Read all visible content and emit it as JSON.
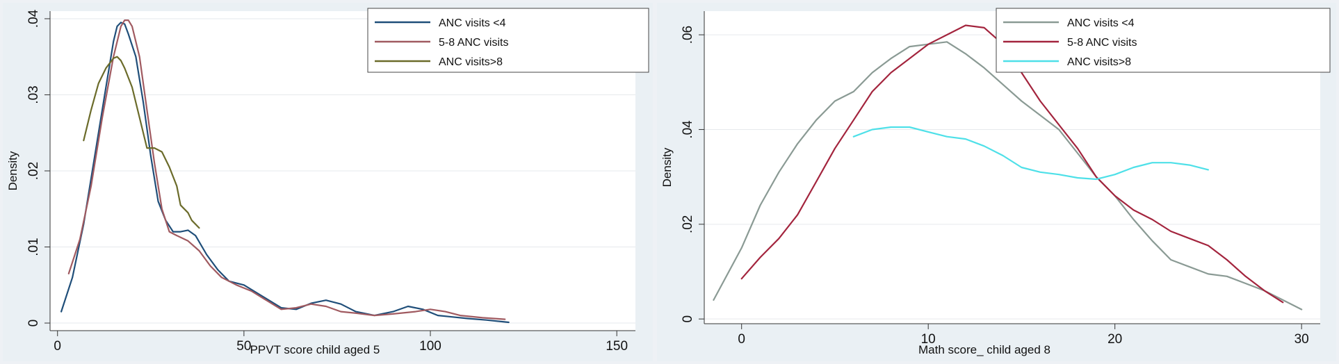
{
  "chart_data": [
    {
      "type": "line",
      "title": "",
      "xlabel": "PPVT score child aged 5",
      "ylabel": "Density",
      "xlim": [
        -2,
        155
      ],
      "ylim": [
        -0.001,
        0.041
      ],
      "xticks": [
        0,
        50,
        100,
        150
      ],
      "xtick_labels": [
        "0",
        "50",
        "100",
        "150"
      ],
      "yticks": [
        0,
        0.01,
        0.02,
        0.03,
        0.04
      ],
      "ytick_labels": [
        "0",
        ".01",
        ".02",
        ".03",
        ".04"
      ],
      "grid": true,
      "legend_position": "top-right",
      "series": [
        {
          "name": "ANC visits <4",
          "color": "#1f4e79",
          "points": [
            [
              1,
              0.0015
            ],
            [
              4,
              0.006
            ],
            [
              7,
              0.013
            ],
            [
              10,
              0.022
            ],
            [
              13,
              0.031
            ],
            [
              15,
              0.037
            ],
            [
              16,
              0.039
            ],
            [
              17,
              0.0395
            ],
            [
              18,
              0.0393
            ],
            [
              19,
              0.038
            ],
            [
              21,
              0.035
            ],
            [
              23,
              0.029
            ],
            [
              25,
              0.022
            ],
            [
              27,
              0.016
            ],
            [
              29,
              0.0135
            ],
            [
              31,
              0.012
            ],
            [
              33,
              0.012
            ],
            [
              35,
              0.0122
            ],
            [
              37,
              0.0115
            ],
            [
              40,
              0.009
            ],
            [
              43,
              0.007
            ],
            [
              46,
              0.0055
            ],
            [
              50,
              0.005
            ],
            [
              55,
              0.0035
            ],
            [
              60,
              0.002
            ],
            [
              64,
              0.0018
            ],
            [
              68,
              0.0026
            ],
            [
              72,
              0.003
            ],
            [
              76,
              0.0025
            ],
            [
              80,
              0.0015
            ],
            [
              85,
              0.001
            ],
            [
              90,
              0.0015
            ],
            [
              94,
              0.0022
            ],
            [
              98,
              0.0018
            ],
            [
              102,
              0.001
            ],
            [
              106,
              0.0008
            ],
            [
              110,
              0.0006
            ],
            [
              115,
              0.0004
            ],
            [
              121,
              0.0001
            ]
          ]
        },
        {
          "name": "5-8 ANC visits",
          "color": "#a05a60",
          "points": [
            [
              3,
              0.0065
            ],
            [
              6,
              0.011
            ],
            [
              9,
              0.018
            ],
            [
              12,
              0.027
            ],
            [
              15,
              0.035
            ],
            [
              17,
              0.039
            ],
            [
              18,
              0.0398
            ],
            [
              19,
              0.0398
            ],
            [
              20,
              0.039
            ],
            [
              22,
              0.035
            ],
            [
              24,
              0.028
            ],
            [
              26,
              0.021
            ],
            [
              28,
              0.015
            ],
            [
              30,
              0.012
            ],
            [
              32,
              0.0115
            ],
            [
              35,
              0.0108
            ],
            [
              38,
              0.0095
            ],
            [
              41,
              0.0075
            ],
            [
              44,
              0.006
            ],
            [
              48,
              0.005
            ],
            [
              52,
              0.0042
            ],
            [
              56,
              0.003
            ],
            [
              60,
              0.0018
            ],
            [
              64,
              0.002
            ],
            [
              68,
              0.0025
            ],
            [
              72,
              0.0022
            ],
            [
              76,
              0.0015
            ],
            [
              80,
              0.0013
            ],
            [
              85,
              0.001
            ],
            [
              90,
              0.0012
            ],
            [
              96,
              0.0015
            ],
            [
              100,
              0.0018
            ],
            [
              104,
              0.0015
            ],
            [
              108,
              0.001
            ],
            [
              114,
              0.0007
            ],
            [
              120,
              0.0005
            ]
          ]
        },
        {
          "name": "ANC visits>8",
          "color": "#6b6b2a",
          "points": [
            [
              7,
              0.024
            ],
            [
              9,
              0.028
            ],
            [
              11,
              0.0315
            ],
            [
              13,
              0.0335
            ],
            [
              15,
              0.0348
            ],
            [
              16,
              0.035
            ],
            [
              17,
              0.0345
            ],
            [
              18,
              0.0335
            ],
            [
              20,
              0.031
            ],
            [
              22,
              0.027
            ],
            [
              24,
              0.023
            ],
            [
              26,
              0.023
            ],
            [
              28,
              0.0225
            ],
            [
              30,
              0.0205
            ],
            [
              32,
              0.018
            ],
            [
              33,
              0.0155
            ],
            [
              35,
              0.0145
            ],
            [
              36,
              0.0135
            ],
            [
              38,
              0.0125
            ]
          ]
        }
      ]
    },
    {
      "type": "line",
      "title": "",
      "xlabel": "Math score_ child aged 8",
      "ylabel": "Density",
      "xlim": [
        -2,
        31
      ],
      "ylim": [
        -0.001,
        0.065
      ],
      "xticks": [
        0,
        10,
        20,
        30
      ],
      "xtick_labels": [
        "0",
        "10",
        "20",
        "30"
      ],
      "yticks": [
        0,
        0.02,
        0.04,
        0.06
      ],
      "ytick_labels": [
        "0",
        ".02",
        ".04",
        ".06"
      ],
      "grid": true,
      "legend_position": "top-right",
      "series": [
        {
          "name": "ANC visits <4",
          "color": "#8a9a94",
          "points": [
            [
              -1.5,
              0.004
            ],
            [
              0,
              0.015
            ],
            [
              1,
              0.024
            ],
            [
              2,
              0.031
            ],
            [
              3,
              0.037
            ],
            [
              4,
              0.042
            ],
            [
              5,
              0.046
            ],
            [
              6,
              0.048
            ],
            [
              7,
              0.052
            ],
            [
              8,
              0.055
            ],
            [
              9,
              0.0575
            ],
            [
              10,
              0.058
            ],
            [
              11,
              0.0585
            ],
            [
              12,
              0.056
            ],
            [
              13,
              0.053
            ],
            [
              14,
              0.0495
            ],
            [
              15,
              0.046
            ],
            [
              16,
              0.043
            ],
            [
              17,
              0.04
            ],
            [
              18,
              0.035
            ],
            [
              19,
              0.03
            ],
            [
              20,
              0.026
            ],
            [
              21,
              0.021
            ],
            [
              22,
              0.0165
            ],
            [
              23,
              0.0125
            ],
            [
              24,
              0.011
            ],
            [
              25,
              0.0095
            ],
            [
              26,
              0.009
            ],
            [
              27,
              0.0075
            ],
            [
              28,
              0.006
            ],
            [
              29,
              0.004
            ],
            [
              30,
              0.002
            ]
          ]
        },
        {
          "name": "5-8 ANC visits",
          "color": "#a3243d",
          "points": [
            [
              0,
              0.0085
            ],
            [
              1,
              0.013
            ],
            [
              2,
              0.017
            ],
            [
              3,
              0.022
            ],
            [
              4,
              0.029
            ],
            [
              5,
              0.036
            ],
            [
              6,
              0.042
            ],
            [
              7,
              0.048
            ],
            [
              8,
              0.052
            ],
            [
              9,
              0.055
            ],
            [
              10,
              0.058
            ],
            [
              11,
              0.06
            ],
            [
              12,
              0.062
            ],
            [
              13,
              0.0615
            ],
            [
              14,
              0.058
            ],
            [
              15,
              0.052
            ],
            [
              16,
              0.046
            ],
            [
              17,
              0.041
            ],
            [
              18,
              0.036
            ],
            [
              19,
              0.03
            ],
            [
              20,
              0.026
            ],
            [
              21,
              0.023
            ],
            [
              22,
              0.021
            ],
            [
              23,
              0.0185
            ],
            [
              24,
              0.017
            ],
            [
              25,
              0.0155
            ],
            [
              26,
              0.0125
            ],
            [
              27,
              0.009
            ],
            [
              28,
              0.006
            ],
            [
              29,
              0.0035
            ]
          ]
        },
        {
          "name": "ANC visits>8",
          "color": "#4ee0e8",
          "points": [
            [
              6,
              0.0385
            ],
            [
              7,
              0.04
            ],
            [
              8,
              0.0405
            ],
            [
              9,
              0.0405
            ],
            [
              10,
              0.0395
            ],
            [
              11,
              0.0385
            ],
            [
              12,
              0.038
            ],
            [
              13,
              0.0365
            ],
            [
              14,
              0.0345
            ],
            [
              15,
              0.032
            ],
            [
              16,
              0.031
            ],
            [
              17,
              0.0305
            ],
            [
              18,
              0.0298
            ],
            [
              19,
              0.0295
            ],
            [
              20,
              0.0305
            ],
            [
              21,
              0.032
            ],
            [
              22,
              0.033
            ],
            [
              23,
              0.033
            ],
            [
              24,
              0.0325
            ],
            [
              25,
              0.0315
            ]
          ]
        }
      ]
    }
  ]
}
